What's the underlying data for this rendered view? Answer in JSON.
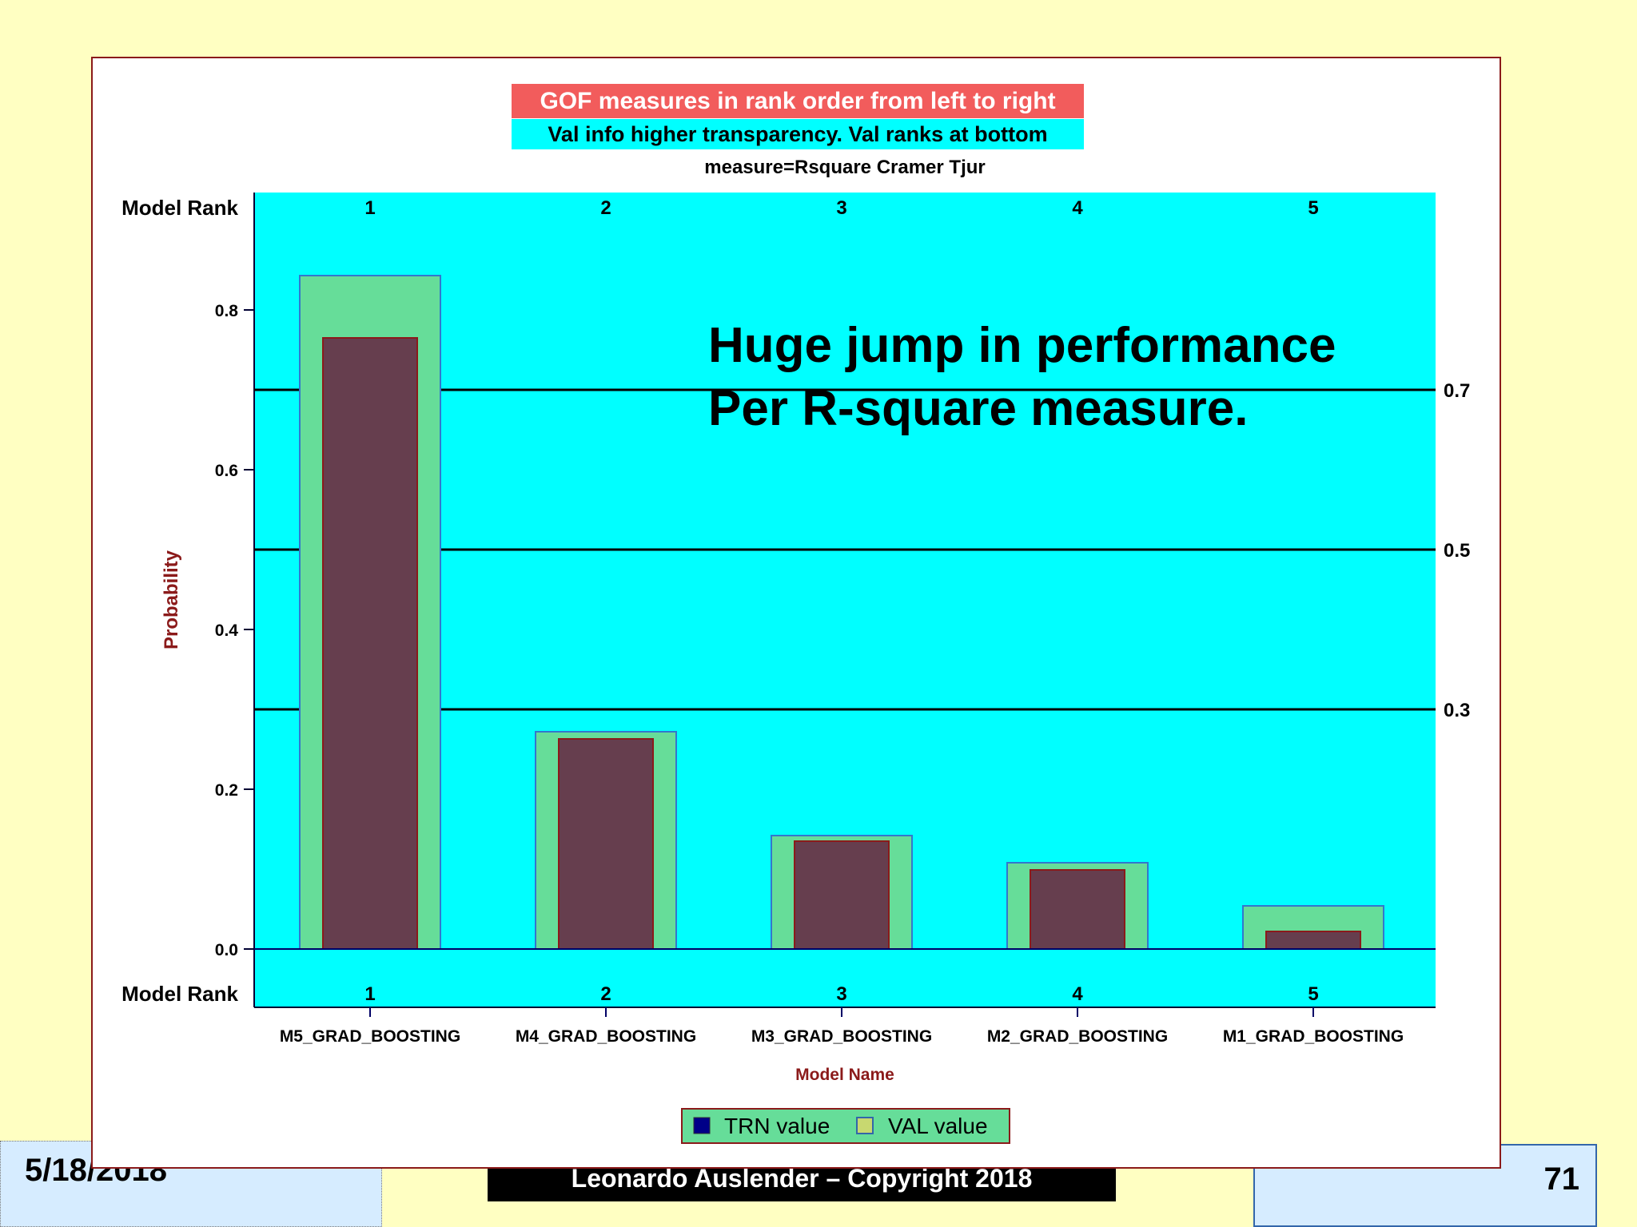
{
  "footer": {
    "date": "5/18/2018",
    "copyright": "Leonardo Auslender – Copyright 2018",
    "page_number": "71"
  },
  "colors": {
    "plot_background": "#00ffff",
    "trn_bar": "#663e4e",
    "val_bar": "#66dd99",
    "title_red": "#f25c5c",
    "axis_label": "#8b1a1a",
    "frame_border": "#8b1a1a"
  },
  "chart_data": {
    "type": "bar",
    "title": "GOF measures in rank order from left to right",
    "subtitle": "Val info higher transparency. Val ranks at bottom",
    "subtitle2": "measure=Rsquare Cramer Tjur",
    "xlabel": "Model Name",
    "ylabel": "Probability",
    "ylim": [
      0.0,
      0.9
    ],
    "yticks": [
      0.0,
      0.2,
      0.4,
      0.6,
      0.8
    ],
    "ytick_labels": [
      "0.0",
      "0.2",
      "0.4",
      "0.6",
      "0.8"
    ],
    "categories": [
      "M5_GRAD_BOOSTING",
      "M4_GRAD_BOOSTING",
      "M3_GRAD_BOOSTING",
      "M2_GRAD_BOOSTING",
      "M1_GRAD_BOOSTING"
    ],
    "series": [
      {
        "name": "TRN value",
        "values": [
          0.765,
          0.263,
          0.135,
          0.099,
          0.022
        ]
      },
      {
        "name": "VAL value",
        "values": [
          0.843,
          0.272,
          0.142,
          0.108,
          0.054
        ]
      }
    ],
    "rank_label": "Model Rank",
    "top_ranks": [
      "1",
      "2",
      "3",
      "4",
      "5"
    ],
    "bottom_ranks": [
      "1",
      "2",
      "3",
      "4",
      "5"
    ],
    "reference_lines": [
      {
        "value": 0.7,
        "label": "0.7"
      },
      {
        "value": 0.5,
        "label": "0.5"
      },
      {
        "value": 0.3,
        "label": "0.3"
      }
    ],
    "annotation": [
      "Huge jump in performance",
      "Per R-square measure."
    ],
    "legend_position": "bottom-center",
    "grid": false
  }
}
